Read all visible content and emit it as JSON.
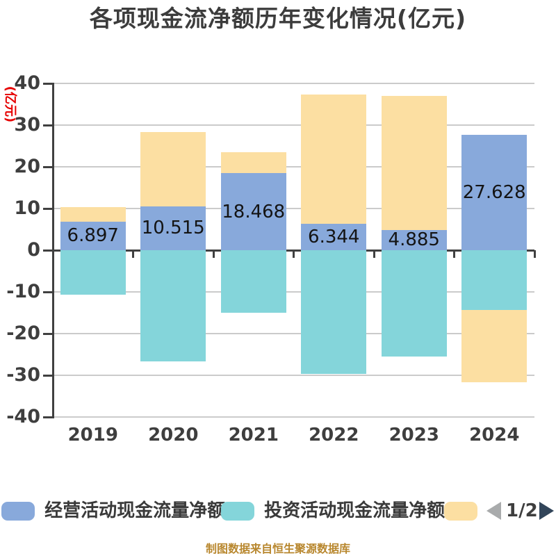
{
  "title": "各项现金流净额历年变化情况(亿元)",
  "y_axis_name": "(亿元)",
  "source_note": "制图数据来自恒生聚源数据库",
  "pagination": {
    "current": "1/2"
  },
  "colors": {
    "operating_bar": "#88a9db",
    "investing_bar": "#84d5da",
    "financing_bar": "#fcdfa2",
    "axis": "#404040",
    "gridline": "#cbcbcb",
    "title_text": "#3c3c3c",
    "y_axis_name_text": "#e60000",
    "source_note_text": "#b8872e",
    "prev_arrow": "#a9abac",
    "next_arrow": "#32455a",
    "bar_label_text": "#141414"
  },
  "legend": {
    "items": [
      {
        "label": "经营活动现金流量净额",
        "color": "#88a9db"
      },
      {
        "label": "投资活动现金流量净额",
        "color": "#84d5da"
      },
      {
        "label": "",
        "color": "#fcdfa2"
      }
    ]
  },
  "chart_data": {
    "type": "bar",
    "stacked": true,
    "title": "各项现金流净额历年变化情况(亿元)",
    "ylabel": "(亿元)",
    "ylim": [
      -40,
      40
    ],
    "y_ticks": [
      40,
      30,
      20,
      10,
      0,
      -10,
      -20,
      -30,
      -40
    ],
    "grid": true,
    "legend_position": "bottom",
    "categories": [
      "2019",
      "2020",
      "2021",
      "2022",
      "2023",
      "2024"
    ],
    "series": [
      {
        "name": "经营活动现金流量净额",
        "color": "#88a9db",
        "values": [
          6.897,
          10.515,
          18.468,
          6.344,
          4.885,
          27.628
        ],
        "labels": [
          "6.897",
          "10.515",
          "18.468",
          "6.344",
          "4.885",
          "27.628"
        ]
      },
      {
        "name": "投资活动现金流量净额",
        "color": "#84d5da",
        "values": [
          -10.7,
          -26.6,
          -15.0,
          -29.6,
          -25.5,
          -14.3
        ],
        "estimated": true
      },
      {
        "name": "",
        "color": "#fcdfa2",
        "values": [
          3.4,
          17.9,
          5.0,
          31.0,
          32.1,
          -17.4
        ],
        "estimated": true
      }
    ]
  }
}
